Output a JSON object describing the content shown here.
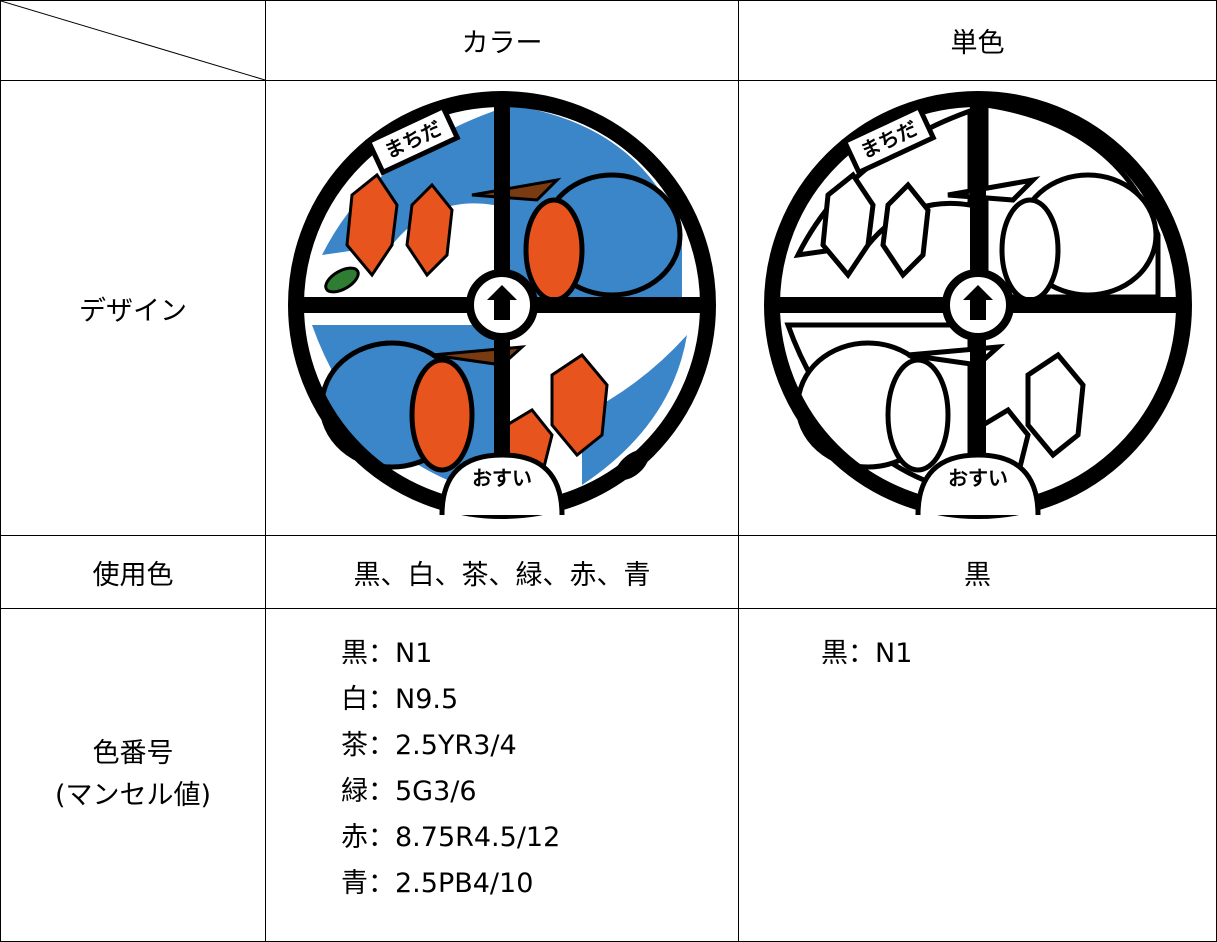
{
  "table": {
    "columns": [
      "カラー",
      "単色"
    ],
    "rows": [
      {
        "label": "デザイン",
        "color_image_texts": [
          "まちだ",
          "おすい"
        ],
        "mono_image_texts": [
          "まちだ",
          "おすい"
        ]
      },
      {
        "label": "使用色",
        "color": "黒、白、茶、緑、赤、青",
        "mono": "黒"
      },
      {
        "label": [
          "色番号",
          "(マンセル値)"
        ],
        "color": [
          "黒：N1",
          "白：N9.5",
          "茶：2.5YR3/4",
          "緑：5G3/6",
          "赤：8.75R4.5/12",
          "青：2.5PB4/10"
        ],
        "mono": [
          "黒：N1"
        ]
      }
    ]
  }
}
